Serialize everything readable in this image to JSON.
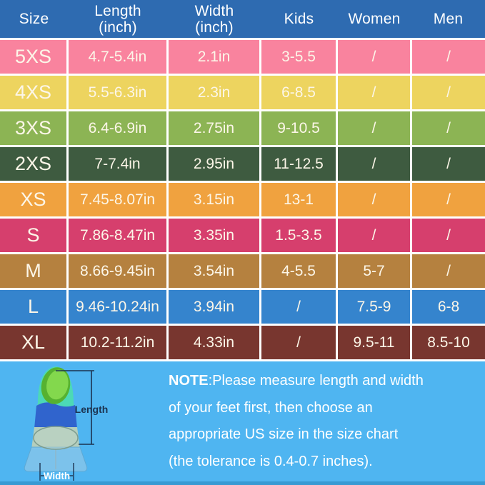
{
  "chart_data": {
    "type": "table",
    "columns": [
      {
        "label": "Size",
        "sub": ""
      },
      {
        "label": "Length",
        "sub": "(inch)"
      },
      {
        "label": "Width",
        "sub": "(inch)"
      },
      {
        "label": "Kids",
        "sub": ""
      },
      {
        "label": "Women",
        "sub": ""
      },
      {
        "label": "Men",
        "sub": ""
      }
    ],
    "rows": [
      {
        "color": "#f9839e",
        "values": [
          "5XS",
          "4.7-5.4in",
          "2.1in",
          "3-5.5",
          "/",
          "/"
        ]
      },
      {
        "color": "#edd45f",
        "values": [
          "4XS",
          "5.5-6.3in",
          "2.3in",
          "6-8.5",
          "/",
          "/"
        ]
      },
      {
        "color": "#8cb454",
        "values": [
          "3XS",
          "6.4-6.9in",
          "2.75in",
          "9-10.5",
          "/",
          "/"
        ]
      },
      {
        "color": "#3e5b40",
        "values": [
          "2XS",
          "7-7.4in",
          "2.95in",
          "11-12.5",
          "/",
          "/"
        ]
      },
      {
        "color": "#f0a23f",
        "values": [
          "XS",
          "7.45-8.07in",
          "3.15in",
          "13-1",
          "/",
          "/"
        ]
      },
      {
        "color": "#d63f6d",
        "values": [
          "S",
          "7.86-8.47in",
          "3.35in",
          "1.5-3.5",
          "/",
          "/"
        ]
      },
      {
        "color": "#b5813f",
        "values": [
          "M",
          "8.66-9.45in",
          "3.54in",
          "4-5.5",
          "5-7",
          "/"
        ]
      },
      {
        "color": "#3584cd",
        "values": [
          "L",
          "9.46-10.24in",
          "3.94in",
          "/",
          "7.5-9",
          "6-8"
        ]
      },
      {
        "color": "#78362f",
        "values": [
          "XL",
          "10.2-11.2in",
          "4.33in",
          "/",
          "9.5-11",
          "8.5-10"
        ]
      }
    ]
  },
  "note": {
    "bold": "NOTE",
    "line1": ":Please measure length and width",
    "line2": "of your feet first, then choose an",
    "line3": "appropriate US size in the size chart",
    "line4": "(the tolerance is 0.4-0.7 inches)."
  },
  "diagram": {
    "length_label": "Length",
    "width_label": "Width"
  },
  "colors": {
    "header_bg": "#2e6bb1",
    "header_text": "#ffffff",
    "cell_text": "#fcf6e8",
    "note_bg": "#4fb5f1",
    "note_text": "#ffffff",
    "bottom_strip": "#389ad3",
    "dimension_line": "#1c3350"
  }
}
